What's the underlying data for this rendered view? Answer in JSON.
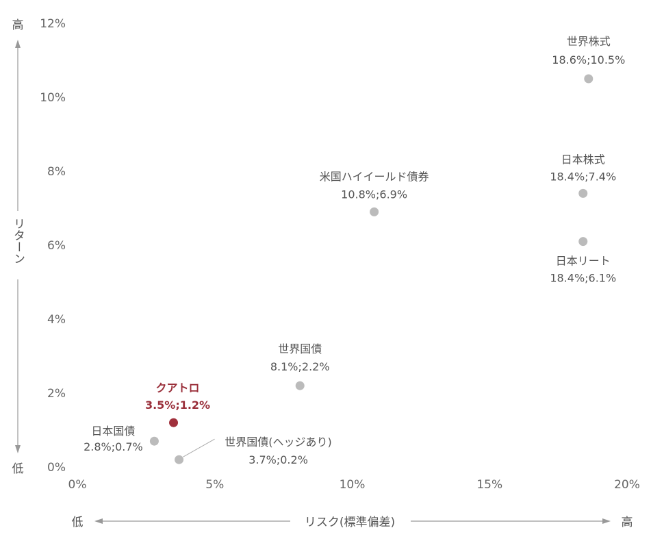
{
  "chart_data": {
    "type": "scatter",
    "xlabel": "リスク(標準偏差)",
    "ylabel": "リターン",
    "x_low": "低",
    "x_high": "高",
    "y_low": "低",
    "y_high": "高",
    "xlim": [
      0,
      20
    ],
    "ylim": [
      0,
      12
    ],
    "x_ticks": [
      "0%",
      "5%",
      "10%",
      "15%",
      "20%"
    ],
    "y_ticks": [
      "0%",
      "2%",
      "4%",
      "6%",
      "8%",
      "10%",
      "12%"
    ],
    "grid": false,
    "colors": {
      "normal": "#bbbbbb",
      "highlight": "#a0303c",
      "text": "#555555",
      "axis": "#999999"
    },
    "points": [
      {
        "name": "世界株式",
        "value_label": "18.6%;10.5%",
        "x": 18.6,
        "y": 10.5,
        "highlight": false
      },
      {
        "name": "日本株式",
        "value_label": "18.4%;7.4%",
        "x": 18.4,
        "y": 7.4,
        "highlight": false
      },
      {
        "name": "日本リート",
        "value_label": "18.4%;6.1%",
        "x": 18.4,
        "y": 6.1,
        "highlight": false
      },
      {
        "name": "米国ハイイールド債券",
        "value_label": "10.8%;6.9%",
        "x": 10.8,
        "y": 6.9,
        "highlight": false
      },
      {
        "name": "世界国債",
        "value_label": "8.1%;2.2%",
        "x": 8.1,
        "y": 2.2,
        "highlight": false
      },
      {
        "name": "クアトロ",
        "value_label": "3.5%;1.2%",
        "x": 3.5,
        "y": 1.2,
        "highlight": true
      },
      {
        "name": "日本国債",
        "value_label": "2.8%;0.7%",
        "x": 2.8,
        "y": 0.7,
        "highlight": false
      },
      {
        "name": "世界国債(ヘッジあり)",
        "value_label": "3.7%;0.2%",
        "x": 3.7,
        "y": 0.2,
        "highlight": false
      }
    ]
  }
}
